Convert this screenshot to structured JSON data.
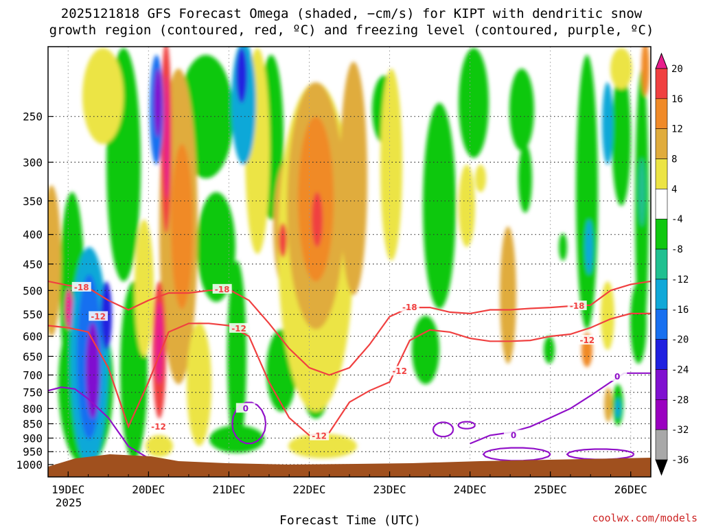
{
  "chart_data": {
    "type": "heatmap",
    "title_line1": "2025121818 GFS Forecast Omega (shaded, −cm/s) for KIPT with dendritic snow",
    "title_line2": "growth region (contoured, red, ºC) and freezing level (contoured, purple, ºC)",
    "xlabel": "Forecast Time (UTC)",
    "credit": "coolwx.com/models",
    "x_ticks": [
      "19DEC",
      "20DEC",
      "21DEC",
      "22DEC",
      "23DEC",
      "24DEC",
      "25DEC",
      "26DEC"
    ],
    "x_tick_hours": [
      6,
      30,
      54,
      78,
      102,
      126,
      150,
      174
    ],
    "x_year_label": "2025",
    "x_range_hours": [
      0,
      180
    ],
    "y_ticks": [
      250,
      300,
      350,
      400,
      450,
      500,
      550,
      600,
      650,
      700,
      750,
      800,
      850,
      900,
      950,
      1000
    ],
    "y_unit": "hPa",
    "y_range": [
      200,
      1000
    ],
    "colorbar": {
      "levels": [
        20,
        16,
        12,
        8,
        4,
        -4,
        -8,
        -12,
        -16,
        -20,
        -24,
        -28,
        -32,
        -36
      ],
      "colors": [
        "#e81e8c",
        "#f04040",
        "#f08a28",
        "#e0ac3c",
        "#ece444",
        "#ffffff",
        "#10c810",
        "#20c090",
        "#10a8d8",
        "#1870f0",
        "#2020e0",
        "#8010d0",
        "#9a00c0",
        "#a8a8a8",
        "#000000"
      ]
    },
    "contours": {
      "dendritic_minus18_label": "-18",
      "dendritic_minus12_label": "-12",
      "freezing_level_label": "0",
      "dendritic_color": "#f04040",
      "freezing_color": "#9010c8",
      "terrain_color": "#a0501e",
      "dendritic_minus18_pressure": [
        {
          "h": 0,
          "p": 482
        },
        {
          "h": 6,
          "p": 490
        },
        {
          "h": 12,
          "p": 495
        },
        {
          "h": 18,
          "p": 520
        },
        {
          "h": 24,
          "p": 540
        },
        {
          "h": 30,
          "p": 520
        },
        {
          "h": 36,
          "p": 505
        },
        {
          "h": 42,
          "p": 505
        },
        {
          "h": 48,
          "p": 500
        },
        {
          "h": 54,
          "p": 498
        },
        {
          "h": 60,
          "p": 520
        },
        {
          "h": 66,
          "p": 570
        },
        {
          "h": 72,
          "p": 630
        },
        {
          "h": 78,
          "p": 680
        },
        {
          "h": 84,
          "p": 700
        },
        {
          "h": 90,
          "p": 680
        },
        {
          "h": 96,
          "p": 620
        },
        {
          "h": 102,
          "p": 555
        },
        {
          "h": 108,
          "p": 535
        },
        {
          "h": 114,
          "p": 535
        },
        {
          "h": 120,
          "p": 545
        },
        {
          "h": 126,
          "p": 548
        },
        {
          "h": 132,
          "p": 540
        },
        {
          "h": 138,
          "p": 540
        },
        {
          "h": 144,
          "p": 537
        },
        {
          "h": 150,
          "p": 535
        },
        {
          "h": 156,
          "p": 532
        },
        {
          "h": 162,
          "p": 530
        },
        {
          "h": 168,
          "p": 500
        },
        {
          "h": 174,
          "p": 488
        },
        {
          "h": 180,
          "p": 482
        }
      ],
      "dendritic_minus12_pressure": [
        {
          "h": 0,
          "p": 575
        },
        {
          "h": 6,
          "p": 580
        },
        {
          "h": 12,
          "p": 590
        },
        {
          "h": 18,
          "p": 680
        },
        {
          "h": 24,
          "p": 860
        },
        {
          "h": 30,
          "p": 720
        },
        {
          "h": 36,
          "p": 590
        },
        {
          "h": 42,
          "p": 570
        },
        {
          "h": 48,
          "p": 570
        },
        {
          "h": 54,
          "p": 575
        },
        {
          "h": 60,
          "p": 600
        },
        {
          "h": 66,
          "p": 720
        },
        {
          "h": 72,
          "p": 830
        },
        {
          "h": 78,
          "p": 890
        },
        {
          "h": 84,
          "p": 880
        },
        {
          "h": 90,
          "p": 780
        },
        {
          "h": 96,
          "p": 745
        },
        {
          "h": 102,
          "p": 720
        },
        {
          "h": 108,
          "p": 610
        },
        {
          "h": 114,
          "p": 585
        },
        {
          "h": 120,
          "p": 590
        },
        {
          "h": 126,
          "p": 605
        },
        {
          "h": 132,
          "p": 612
        },
        {
          "h": 138,
          "p": 612
        },
        {
          "h": 144,
          "p": 610
        },
        {
          "h": 150,
          "p": 600
        },
        {
          "h": 156,
          "p": 595
        },
        {
          "h": 162,
          "p": 580
        },
        {
          "h": 168,
          "p": 560
        },
        {
          "h": 174,
          "p": 548
        },
        {
          "h": 180,
          "p": 548
        }
      ],
      "freezing_level_pressure": [
        {
          "h": 0,
          "p": 745
        },
        {
          "h": 4,
          "p": 735
        },
        {
          "h": 8,
          "p": 740
        },
        {
          "h": 12,
          "p": 770
        },
        {
          "h": 18,
          "p": 830
        },
        {
          "h": 24,
          "p": 930
        },
        {
          "h": 30,
          "p": 975
        }
      ],
      "freezing_level_pressure_right": [
        {
          "h": 126,
          "p": 920
        },
        {
          "h": 132,
          "p": 890
        },
        {
          "h": 138,
          "p": 880
        },
        {
          "h": 144,
          "p": 860
        },
        {
          "h": 150,
          "p": 830
        },
        {
          "h": 156,
          "p": 800
        },
        {
          "h": 162,
          "p": 760
        },
        {
          "h": 168,
          "p": 720
        },
        {
          "h": 172,
          "p": 695
        },
        {
          "h": 180,
          "p": 695
        }
      ]
    }
  }
}
